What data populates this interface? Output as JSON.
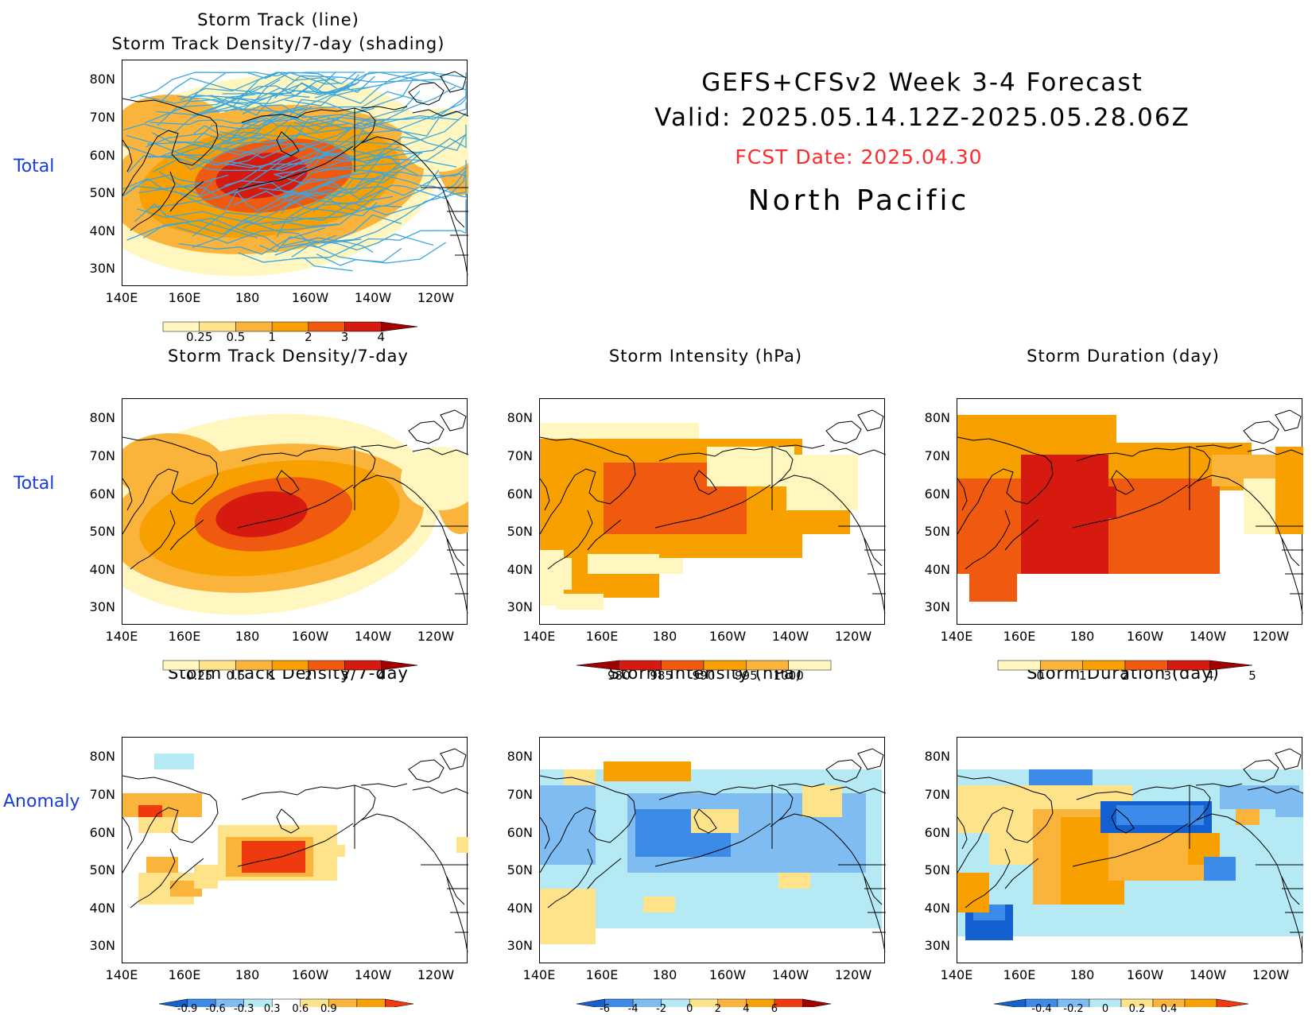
{
  "header": {
    "line1": "GEFS+CFSv2 Week 3-4 Forecast",
    "line2": "Valid: 2025.05.14.12Z-2025.05.28.06Z",
    "fcst": "FCST Date: 2025.04.30",
    "region": "North Pacific",
    "fcst_color": "#ff2a2a"
  },
  "row_labels": [
    "Total",
    "Total",
    "Anomaly"
  ],
  "axes": {
    "lat_ticks": [
      "80N",
      "70N",
      "60N",
      "50N",
      "40N",
      "30N"
    ],
    "lon_ticks": [
      "140E",
      "160E",
      "180",
      "160W",
      "140W",
      "120W"
    ]
  },
  "panels": {
    "p0": {
      "title": "Storm Track (line)\nStorm Track Density/7-day (shading)"
    },
    "p1": {
      "title": "Storm Track Density/7-day"
    },
    "p2": {
      "title": "Storm Intensity (hPa)"
    },
    "p3": {
      "title": "Storm Duration (day)"
    },
    "p4": {
      "title": "Storm Track Density/7-day"
    },
    "p5": {
      "title": "Storm Intensity (hPa)"
    },
    "p6": {
      "title": "Storm Duration (day)"
    }
  },
  "colorbars": {
    "density": {
      "labels": [
        "0.25",
        "0.5",
        "1",
        "2",
        "3",
        "4"
      ],
      "colors": [
        "#fff7bf",
        "#ffe38a",
        "#fbb43b",
        "#f7a000",
        "#ef5a10",
        "#d61a10",
        "#a00000"
      ]
    },
    "intensity": {
      "labels": [
        "980",
        "985",
        "990",
        "995",
        "1000"
      ],
      "colors": [
        "#a00000",
        "#d61a10",
        "#ef5a10",
        "#f7a000",
        "#fbb43b",
        "#fff7bf"
      ]
    },
    "duration": {
      "labels": [
        "0",
        "1",
        "2",
        "3",
        "4",
        "5"
      ],
      "colors": [
        "#fff7bf",
        "#fbb43b",
        "#f7a000",
        "#ef5a10",
        "#d61a10",
        "#a00000"
      ]
    },
    "anom_density": {
      "labels": [
        "-0.9",
        "-0.6",
        "-0.3",
        "0.3",
        "0.6",
        "0.9"
      ],
      "colors": [
        "#1560d0",
        "#3c8be8",
        "#7fbcf2",
        "#b5eaf5",
        "#ffffff",
        "#ffe38a",
        "#fbb43b",
        "#f7a000",
        "#ef3a10"
      ]
    },
    "anom_intensity": {
      "labels": [
        "-6",
        "-4",
        "-2",
        "0",
        "2",
        "4",
        "6"
      ],
      "colors": [
        "#1560d0",
        "#3c8be8",
        "#7fbcf2",
        "#b5eaf5",
        "#ffe38a",
        "#fbb43b",
        "#f7a000",
        "#ef3a10",
        "#a00000"
      ]
    },
    "anom_duration": {
      "labels": [
        "-0.4",
        "-0.2",
        "0",
        "0.2",
        "0.4"
      ],
      "colors": [
        "#1560d0",
        "#3c8be8",
        "#7fbcf2",
        "#b5eaf5",
        "#ffe38a",
        "#fbb43b",
        "#f7a000",
        "#ef3a10"
      ]
    }
  },
  "colors": {
    "track_line": "#3aa6e0",
    "coast": "#000000",
    "row_label": "#1a3bd9"
  }
}
